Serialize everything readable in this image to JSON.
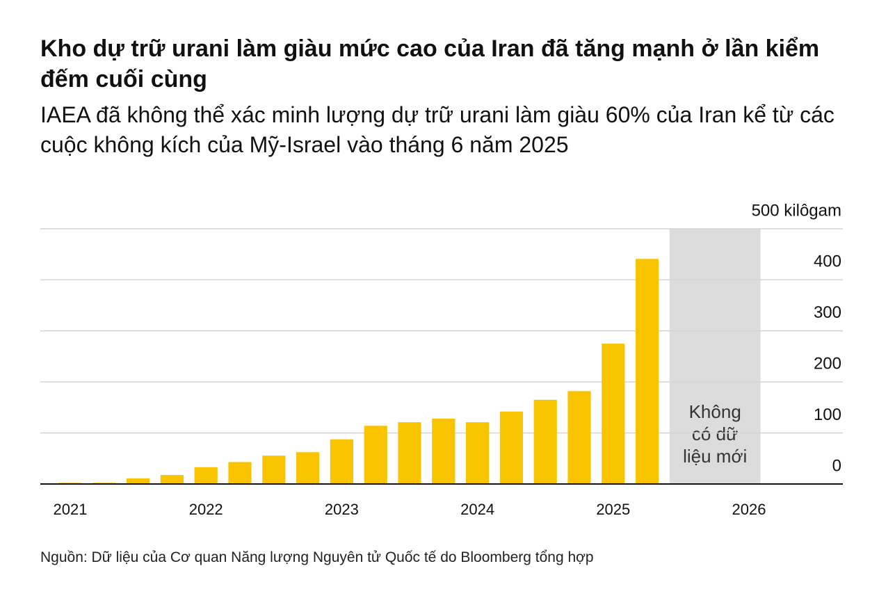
{
  "chart_data": {
    "type": "bar",
    "title": "Kho dự trữ urani làm giàu mức cao của Iran đã tăng mạnh ở lần kiểm đếm cuối cùng",
    "subtitle": "IAEA đã không thể xác minh lượng dự trữ urani làm giàu 60% của Iran kể từ các cuộc không kích của Mỹ-Israel vào tháng 6 năm 2025",
    "source": "Nguồn: Dữ liệu của Cơ quan Năng lượng Nguyên tử Quốc tế do Bloomberg tổng hợp",
    "annotation": [
      "Không",
      "có dữ",
      "liệu mới"
    ],
    "categories": [
      "2021",
      null,
      null,
      null,
      "2022",
      null,
      null,
      null,
      "2023",
      null,
      null,
      null,
      "2024",
      null,
      null,
      null,
      "2025",
      null,
      null,
      null,
      "2026"
    ],
    "values": [
      2.4,
      2.4,
      11,
      17.6,
      33,
      43,
      55.6,
      62.3,
      87.5,
      114,
      121,
      128,
      121,
      142,
      165,
      182,
      275,
      441,
      null,
      null,
      null
    ],
    "color": "#f9c300",
    "ylim": [
      0,
      500
    ],
    "yticks": [
      0,
      100,
      200,
      300,
      400,
      {
        "value": 500,
        "label": "500 kilôgam"
      }
    ],
    "grid": true
  }
}
